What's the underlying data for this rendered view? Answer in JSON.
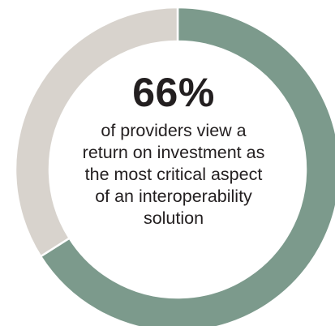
{
  "chart_data": {
    "type": "pie",
    "donut": true,
    "title": "",
    "segments": [
      {
        "label": "view ROI as most critical",
        "value": 66,
        "color": "#7c9a8c"
      },
      {
        "label": "other",
        "value": 34,
        "color": "#d8d3cd"
      }
    ],
    "center_value": "66%",
    "center_caption_lines": [
      "of providers view a",
      "return on investment as",
      "the most critical aspect",
      "of an interoperability",
      "solution"
    ]
  }
}
